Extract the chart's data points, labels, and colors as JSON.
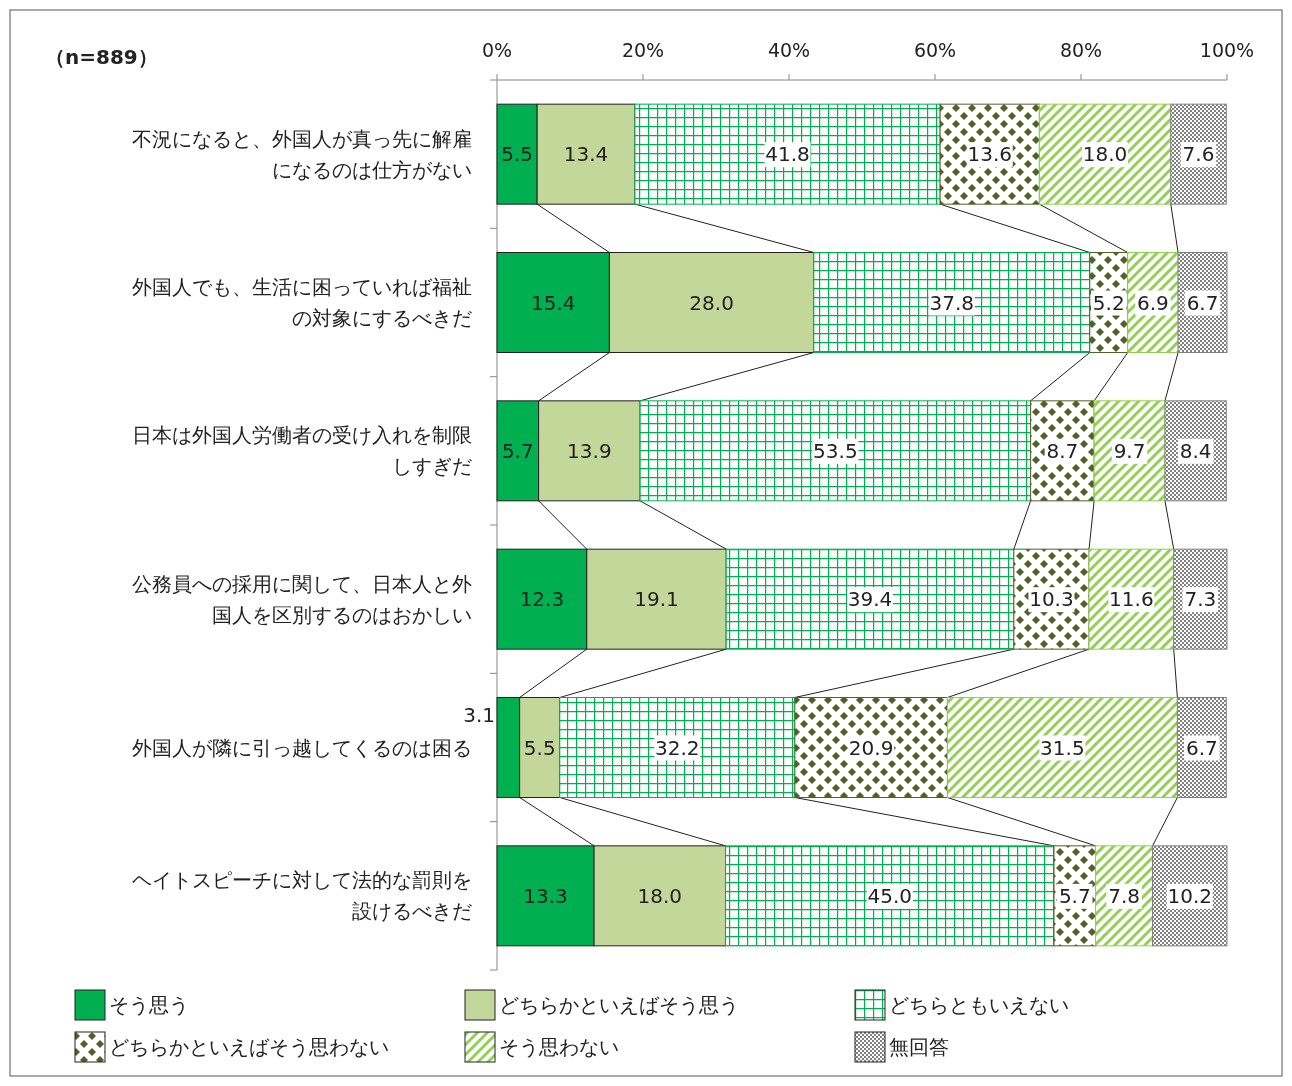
{
  "chart_data": {
    "type": "bar",
    "orientation": "horizontal",
    "stacked": true,
    "categories": [
      "不況になると、外国人が真っ先に解雇になるのは仕方がない",
      "外国人でも、生活に困っていれば福祉の対象にするべきだ",
      "日本は外国人労働者の受け入れを制限しすぎだ",
      "公務員への採用に関して、日本人と外国人を区別するのはおかしい",
      "外国人が隣に引っ越してくるのは困る",
      "ヘイトスピーチに対して法的な罰則を設けるべきだ"
    ],
    "series": [
      {
        "name": "そう思う",
        "color": "#00b050",
        "values": [
          5.5,
          15.4,
          5.7,
          12.3,
          3.1,
          13.3
        ]
      },
      {
        "name": "どちらかといえばそう思う",
        "color": "#c4d79b",
        "values": [
          13.4,
          28.0,
          13.9,
          19.1,
          5.5,
          18.0
        ]
      },
      {
        "name": "どちらともいえない",
        "color": "#00b050",
        "values": [
          41.8,
          37.8,
          53.5,
          39.4,
          32.2,
          45.0
        ]
      },
      {
        "name": "どちらかといえばそう思わない",
        "color": "#4f6228",
        "values": [
          13.6,
          5.2,
          8.7,
          10.3,
          20.9,
          5.7
        ]
      },
      {
        "name": "そう思わない",
        "color": "#92d050",
        "values": [
          18.0,
          6.9,
          9.7,
          11.6,
          31.5,
          7.8
        ]
      },
      {
        "name": "無回答",
        "color": "#808080",
        "values": [
          7.6,
          6.7,
          8.4,
          7.3,
          6.7,
          10.2
        ]
      }
    ],
    "xlim": [
      0,
      100
    ],
    "xticks": [
      {
        "value": 0,
        "label": "0%"
      },
      {
        "value": 20,
        "label": "20%"
      },
      {
        "value": 40,
        "label": "40%"
      },
      {
        "value": 60,
        "label": "60%"
      },
      {
        "value": 80,
        "label": "80%"
      },
      {
        "value": 100,
        "label": "100%"
      }
    ],
    "value_labels": [
      [
        "5.5",
        "15.4",
        "5.7",
        "12.3",
        "3.1",
        "13.3"
      ],
      [
        "13.4",
        "28.0",
        "13.9",
        "19.1",
        "5.5",
        "18.0"
      ],
      [
        "41.8",
        "37.8",
        "53.5",
        "39.4",
        "32.2",
        "45.0"
      ],
      [
        "13.6",
        "5.2",
        "8.7",
        "10.3",
        "20.9",
        "5.7"
      ],
      [
        "18.0",
        "6.9",
        "9.7",
        "11.6",
        "31.5",
        "7.8"
      ],
      [
        "7.6",
        "6.7",
        "8.4",
        "7.3",
        "6.7",
        "10.2"
      ]
    ],
    "legend": "bottom",
    "annotations": [
      "（n=889）"
    ]
  }
}
